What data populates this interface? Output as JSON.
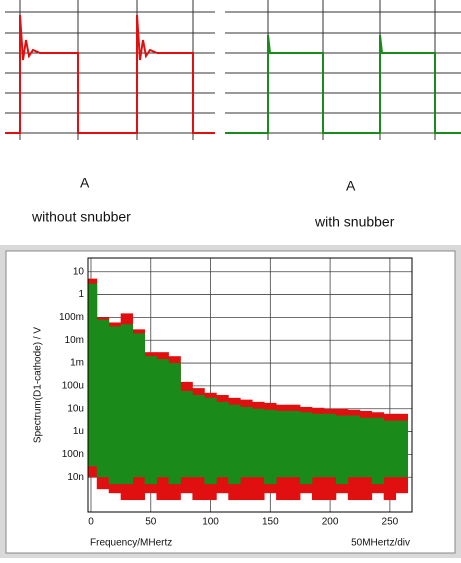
{
  "waveforms": [
    {
      "marker": "A",
      "caption": "without snubber"
    },
    {
      "marker": "A",
      "caption": "with snubber"
    }
  ],
  "chart_data": {
    "type": "area",
    "log_y": true,
    "grid": true,
    "ylabel": "Spectrum(D1-cathode) / V",
    "xlabel": "Frequency/MHertz",
    "scale_note": "50MHertz/div",
    "xlim": [
      -2.5,
      268.5
    ],
    "xticks": [
      0,
      50,
      100,
      150,
      200,
      250
    ],
    "ylim": [
      3e-10,
      40
    ],
    "yticks": [
      10,
      1,
      {
        "value": 0.1,
        "label": "100m"
      },
      {
        "value": 0.01,
        "label": "10m"
      },
      {
        "value": 0.001,
        "label": "1m"
      },
      {
        "value": 0.0001,
        "label": "100u"
      },
      {
        "value": 1e-05,
        "label": "10u"
      },
      {
        "value": 1e-06,
        "label": "1u"
      },
      {
        "value": 1e-07,
        "label": "100n"
      },
      {
        "value": 1e-08,
        "label": "10n"
      }
    ],
    "x": [
      0,
      10,
      20,
      30,
      40,
      50,
      60,
      70,
      80,
      90,
      100,
      110,
      120,
      130,
      140,
      150,
      160,
      170,
      180,
      190,
      200,
      210,
      220,
      230,
      240,
      250,
      260
    ],
    "series": [
      {
        "color": "#e01010",
        "values": [
          5,
          0.1,
          0.06,
          0.15,
          0.03,
          0.003,
          0.003,
          0.002,
          0.00015,
          8e-05,
          5e-05,
          4e-05,
          3e-05,
          2.5e-05,
          2e-05,
          1.8e-05,
          1.5e-05,
          1.5e-05,
          1.2e-05,
          1.1e-05,
          1e-05,
          1e-05,
          9e-06,
          8e-06,
          7e-06,
          6e-06,
          6e-06
        ],
        "lows": [
          1e-08,
          3e-09,
          2e-09,
          1e-09,
          1e-09,
          2e-09,
          1e-09,
          1e-09,
          2e-09,
          1e-09,
          1e-09,
          2e-09,
          1e-09,
          1e-09,
          1e-09,
          2e-09,
          1e-09,
          1e-09,
          2e-09,
          1e-09,
          1e-09,
          2e-09,
          1e-09,
          1e-09,
          2e-09,
          1e-09,
          2e-09
        ]
      },
      {
        "color": "#1a8a1a",
        "values": [
          3,
          0.08,
          0.04,
          0.05,
          0.02,
          0.002,
          0.0015,
          0.001,
          6e-05,
          4e-05,
          3e-05,
          2e-05,
          1.5e-05,
          1.2e-05,
          1e-05,
          9e-06,
          8e-06,
          8e-06,
          7e-06,
          6e-06,
          6e-06,
          5e-06,
          5e-06,
          4e-06,
          4e-06,
          3e-06,
          3e-06
        ],
        "lows": [
          3e-08,
          1e-08,
          5e-09,
          5e-09,
          1e-08,
          5e-09,
          1e-08,
          5e-09,
          1e-08,
          1e-08,
          5e-09,
          1e-08,
          5e-09,
          1e-08,
          1e-08,
          5e-09,
          1e-08,
          1e-08,
          5e-09,
          1e-08,
          1e-08,
          5e-09,
          1e-08,
          1e-08,
          5e-09,
          1e-08,
          1e-08
        ]
      }
    ]
  }
}
